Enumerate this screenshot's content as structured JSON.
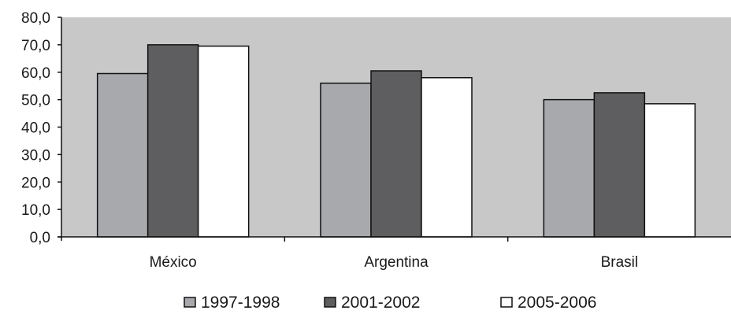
{
  "chart_data": {
    "type": "bar",
    "categories": [
      "México",
      "Argentina",
      "Brasil"
    ],
    "series": [
      {
        "name": "1997-1998",
        "values": [
          59.5,
          56.0,
          50.0
        ],
        "color": "#a8a9ad"
      },
      {
        "name": "2001-2002",
        "values": [
          70.0,
          60.5,
          52.5
        ],
        "color": "#5e5e60"
      },
      {
        "name": "2005-2006",
        "values": [
          69.5,
          58.0,
          48.5
        ],
        "color": "#ffffff"
      }
    ],
    "title": "",
    "xlabel": "",
    "ylabel": "",
    "ylim": [
      0,
      80
    ],
    "yticks": [
      0,
      10,
      20,
      30,
      40,
      50,
      60,
      70,
      80
    ],
    "ytick_labels": [
      "0,0",
      "10,0",
      "20,0",
      "30,0",
      "40,0",
      "50,0",
      "60,0",
      "70,0",
      "80,0"
    ],
    "grid": false,
    "plot_background": "#c8c8c8",
    "legend_position": "bottom"
  }
}
